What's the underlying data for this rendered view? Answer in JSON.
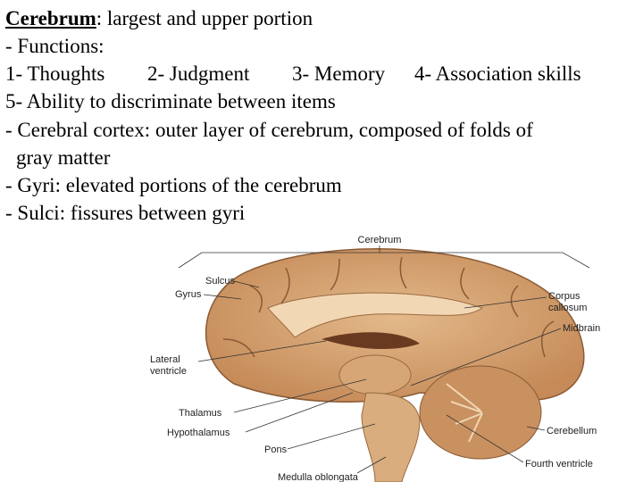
{
  "text": {
    "heading": {
      "term": "Cerebrum",
      "rest": ": largest and upper portion"
    },
    "functions_label": "- Functions:",
    "functions": [
      "1- Thoughts",
      "2- Judgment",
      "3- Memory",
      "4- Association skills"
    ],
    "function_5": "5- Ability to discriminate between items",
    "cortex": [
      "- Cerebral cortex: outer layer of cerebrum, composed of folds of",
      "gray matter"
    ],
    "gyri": "- Gyri: elevated portions of the cerebrum",
    "sulci": "- Sulci: fissures between gyri"
  },
  "figure": {
    "labels": {
      "cerebrum": "Cerebrum",
      "sulcus": "Sulcus",
      "gyrus": "Gyrus",
      "corpus_callosum": [
        "Corpus",
        "callosum"
      ],
      "midbrain": "Midbrain",
      "lateral_ventricle": [
        "Lateral",
        "ventricle"
      ],
      "thalamus": "Thalamus",
      "hypothalamus": "Hypothalamus",
      "pons": "Pons",
      "medulla": "Medulla oblongata",
      "cerebellum": "Cerebellum",
      "fourth_ventricle": "Fourth ventricle"
    }
  }
}
